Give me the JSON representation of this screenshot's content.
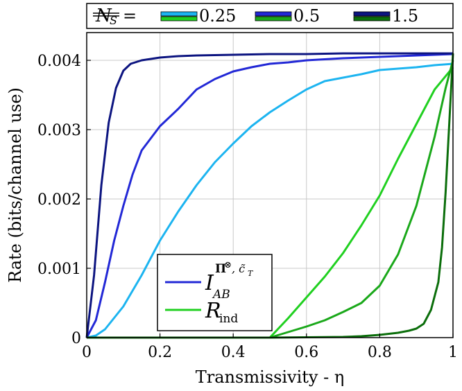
{
  "chart_data": {
    "type": "line",
    "xlabel": "Transmissivity - η",
    "ylabel": "Rate (bits/channel use)",
    "xlim": [
      0,
      1
    ],
    "ylim": [
      0,
      0.0044
    ],
    "x_ticks": [
      "0",
      "0.2",
      "0.4",
      "0.6",
      "0.8",
      "1"
    ],
    "y_ticks": [
      "0",
      "0.001",
      "0.002",
      "0.003",
      "0.004"
    ],
    "grid": true,
    "top_legend": {
      "prefix": "NS =",
      "entries": [
        "0.25",
        "0.5",
        "1.5"
      ]
    },
    "inner_legend": {
      "placement": "bottom-center",
      "entries": [
        "I_AB^{Π⊗, c̃_T}",
        "R_ind"
      ]
    },
    "colors": {
      "I_0.25": "#1cb4f0",
      "I_0.5": "#2228d6",
      "I_1.5": "#0c1480",
      "R_0.25": "#20d020",
      "R_0.5": "#1aa81a",
      "R_1.5": "#0b6e0b"
    },
    "series": [
      {
        "family": "I",
        "ns": "0.25",
        "x": [
          0,
          0.025,
          0.05,
          0.1,
          0.15,
          0.2,
          0.25,
          0.3,
          0.35,
          0.4,
          0.45,
          0.5,
          0.55,
          0.6,
          0.65,
          0.7,
          0.75,
          0.8,
          0.85,
          0.9,
          0.95,
          1.0
        ],
        "y": [
          0,
          3e-05,
          0.00012,
          0.00045,
          0.0009,
          0.0014,
          0.00182,
          0.0022,
          0.00253,
          0.0028,
          0.00305,
          0.00325,
          0.00342,
          0.00358,
          0.0037,
          0.00375,
          0.0038,
          0.00386,
          0.00388,
          0.0039,
          0.00393,
          0.00395
        ]
      },
      {
        "family": "I",
        "ns": "0.5",
        "x": [
          0,
          0.025,
          0.05,
          0.075,
          0.1,
          0.125,
          0.15,
          0.2,
          0.25,
          0.3,
          0.35,
          0.4,
          0.45,
          0.5,
          0.55,
          0.6,
          0.7,
          0.8,
          0.9,
          1.0
        ],
        "y": [
          0,
          0.00025,
          0.0008,
          0.0014,
          0.0019,
          0.00235,
          0.0027,
          0.00305,
          0.0033,
          0.00358,
          0.00373,
          0.00384,
          0.0039,
          0.00395,
          0.00397,
          0.004,
          0.00403,
          0.00405,
          0.00407,
          0.00409
        ]
      },
      {
        "family": "I",
        "ns": "1.5",
        "x": [
          0,
          0.02,
          0.04,
          0.06,
          0.08,
          0.1,
          0.12,
          0.15,
          0.2,
          0.25,
          0.3,
          0.4,
          0.5,
          0.6,
          0.7,
          0.8,
          0.9,
          1.0
        ],
        "y": [
          0,
          0.0009,
          0.0022,
          0.0031,
          0.0036,
          0.00385,
          0.00395,
          0.004,
          0.00404,
          0.00406,
          0.00407,
          0.00408,
          0.00409,
          0.00409,
          0.0041,
          0.0041,
          0.0041,
          0.0041
        ]
      },
      {
        "family": "R",
        "ns": "0.25",
        "x": [
          0.5,
          0.55,
          0.6,
          0.65,
          0.7,
          0.75,
          0.8,
          0.85,
          0.9,
          0.95,
          1.0
        ],
        "y": [
          0,
          0.00028,
          0.00058,
          0.00088,
          0.00122,
          0.00162,
          0.00205,
          0.00258,
          0.00308,
          0.00358,
          0.0039
        ]
      },
      {
        "family": "R",
        "ns": "0.5",
        "x": [
          0.5,
          0.55,
          0.6,
          0.65,
          0.7,
          0.75,
          0.8,
          0.85,
          0.9,
          0.95,
          0.98,
          1.0
        ],
        "y": [
          0,
          8e-05,
          0.00016,
          0.00025,
          0.00037,
          0.0005,
          0.00075,
          0.0012,
          0.0019,
          0.0029,
          0.0036,
          0.004
        ]
      },
      {
        "family": "R",
        "ns": "1.5",
        "x": [
          0.5,
          0.6,
          0.7,
          0.75,
          0.8,
          0.85,
          0.88,
          0.9,
          0.92,
          0.94,
          0.96,
          0.97,
          0.98,
          0.99,
          1.0
        ],
        "y": [
          0,
          5e-06,
          1e-05,
          2e-05,
          4e-05,
          7e-05,
          0.0001,
          0.00013,
          0.0002,
          0.0004,
          0.0008,
          0.0013,
          0.0021,
          0.0031,
          0.0041
        ]
      }
    ]
  }
}
